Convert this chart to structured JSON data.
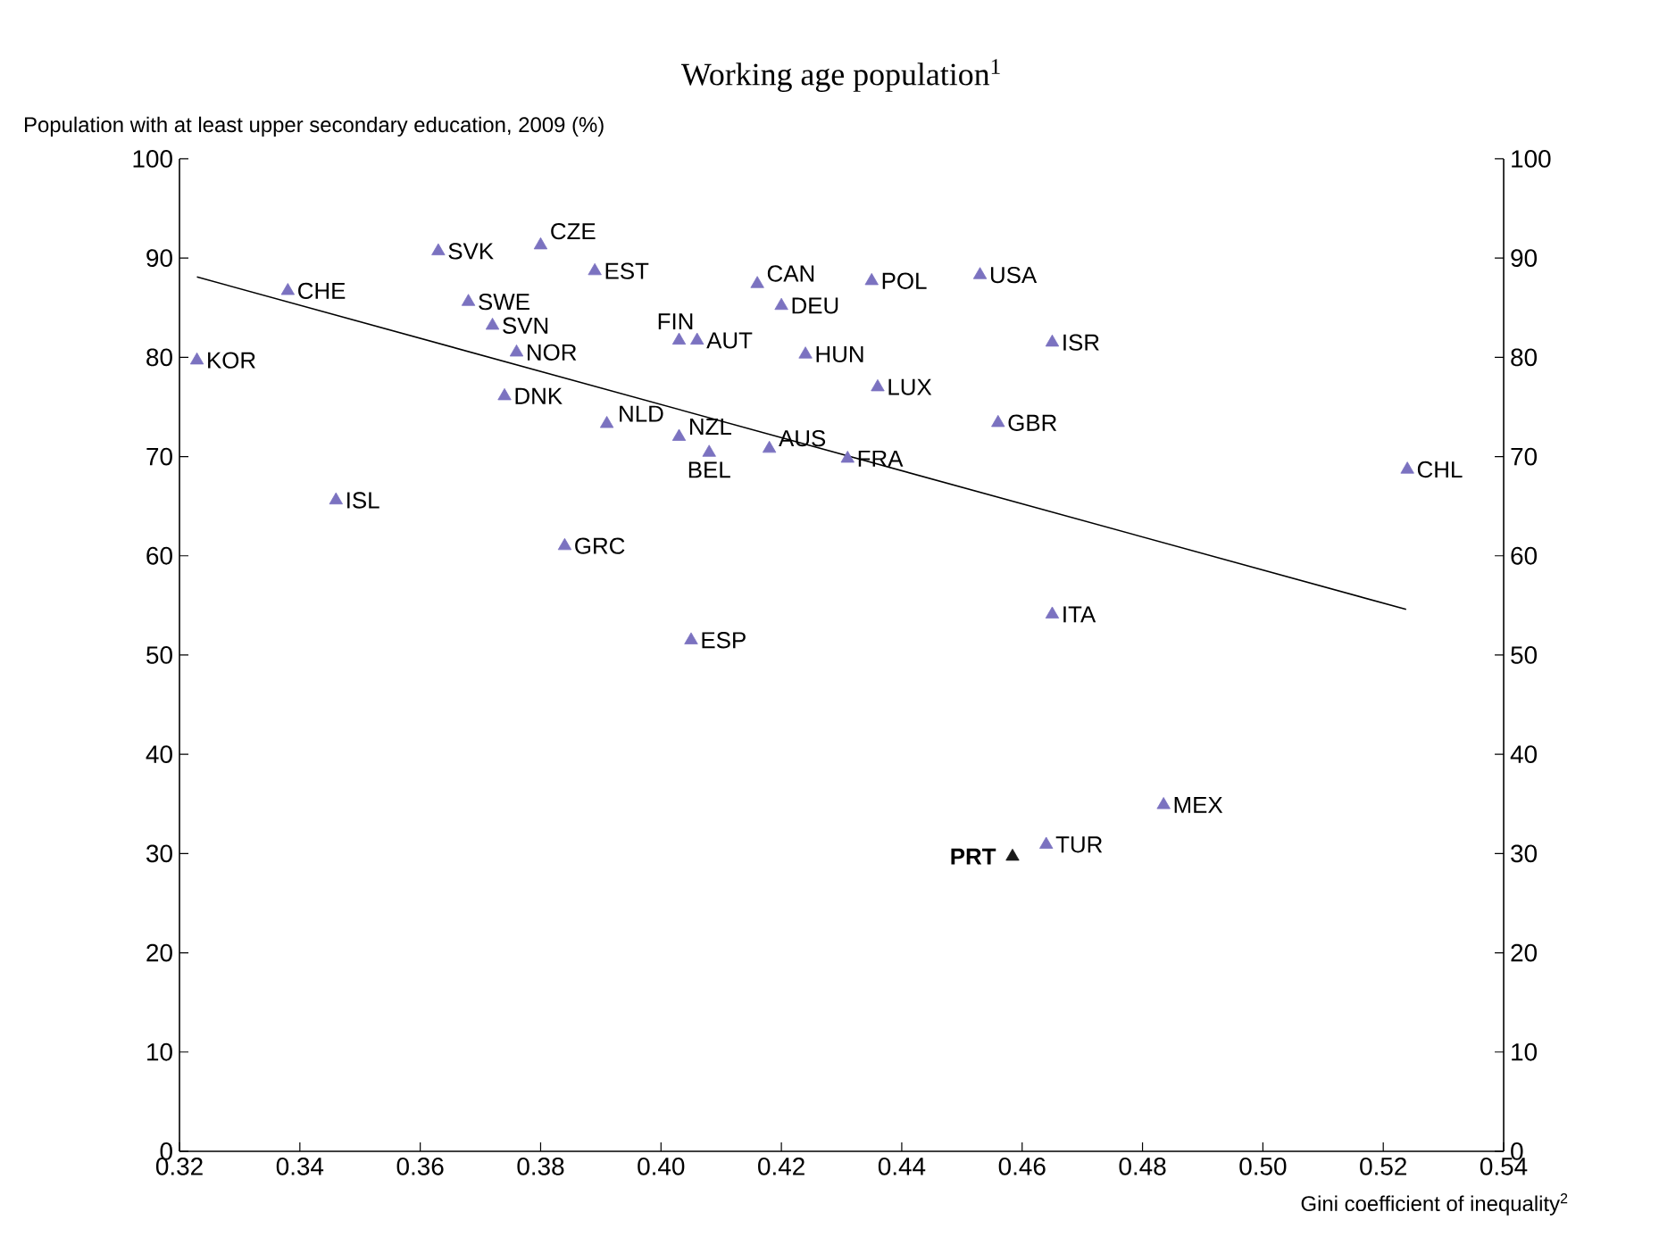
{
  "chart_data": {
    "type": "scatter",
    "title": "Working age population$^{1}$",
    "ylabel": "Population with at least upper secondary education, 2009 (%)",
    "xlabel": "Gini coefficient of inequality$^{2}$",
    "xlim": [
      0.32,
      0.54
    ],
    "xticks": [
      0.32,
      0.34,
      0.36,
      0.38,
      {
        "value": 0.4,
        "label": "0.40"
      },
      0.42,
      0.44,
      0.46,
      0.48,
      {
        "value": 0.5,
        "label": "0.50"
      },
      0.52,
      0.54
    ],
    "ylim": [
      0,
      100
    ],
    "yticks": [
      0,
      10,
      20,
      30,
      40,
      50,
      60,
      70,
      80,
      90,
      100
    ],
    "y2lim": [
      0,
      100
    ],
    "y2ticks": [
      0,
      10,
      20,
      30,
      40,
      50,
      60,
      70,
      80,
      90,
      100
    ],
    "marker": "triangle",
    "series": [
      {
        "color": "#7b72c0",
        "x": [
          0.3229,
          0.338,
          0.363,
          0.38,
          0.389,
          0.368,
          0.372,
          0.376,
          0.374,
          0.391,
          0.403,
          0.408,
          0.346,
          0.384,
          0.403,
          0.406,
          0.416,
          0.42,
          0.435,
          0.453,
          0.465,
          0.424,
          0.436,
          0.456,
          0.418,
          0.431,
          0.465,
          0.405,
          0.4835,
          0.464,
          0.524
        ],
        "values": [
          79.7,
          86.7,
          90.7,
          91.3,
          88.7,
          85.6,
          83.2,
          80.5,
          76.1,
          73.3,
          72.0,
          70.4,
          65.6,
          61.0,
          81.7,
          81.7,
          87.4,
          85.2,
          87.7,
          88.3,
          81.5,
          80.3,
          77.0,
          73.4,
          70.8,
          69.8,
          54.1,
          51.5,
          34.9,
          30.9,
          68.7
        ]
      },
      {
        "color": "#1a1a1a",
        "x": [
          0.4584
        ],
        "values": [
          29.7
        ]
      },
      {
        "type": "line",
        "marker": "none",
        "color": "#000000",
        "x": [
          0.3229,
          0.5238
        ],
        "values": [
          88.1,
          54.6
        ]
      }
    ],
    "annotations": [
      {
        "text": "KOR",
        "x": 0.3229,
        "y": 79.7
      },
      {
        "text": "CHE",
        "x": 0.338,
        "y": 86.7
      },
      {
        "text": "SVK",
        "x": 0.363,
        "y": 90.7
      },
      {
        "text": "CZE",
        "x": 0.38,
        "y": 91.3
      },
      {
        "text": "EST",
        "x": 0.389,
        "y": 88.7
      },
      {
        "text": "SWE",
        "x": 0.368,
        "y": 85.6
      },
      {
        "text": "SVN",
        "x": 0.372,
        "y": 83.2
      },
      {
        "text": "NOR",
        "x": 0.376,
        "y": 80.5
      },
      {
        "text": "DNK",
        "x": 0.374,
        "y": 76.1
      },
      {
        "text": "NLD",
        "x": 0.391,
        "y": 73.3
      },
      {
        "text": "NZL",
        "x": 0.403,
        "y": 72.0
      },
      {
        "text": "BEL",
        "x": 0.408,
        "y": 70.4
      },
      {
        "text": "ISL",
        "x": 0.346,
        "y": 65.6
      },
      {
        "text": "GRC",
        "x": 0.384,
        "y": 61.0
      },
      {
        "text": "FIN",
        "x": 0.403,
        "y": 81.7
      },
      {
        "text": "AUT",
        "x": 0.406,
        "y": 81.7
      },
      {
        "text": "CAN",
        "x": 0.416,
        "y": 87.4
      },
      {
        "text": "DEU",
        "x": 0.42,
        "y": 85.2
      },
      {
        "text": "POL",
        "x": 0.435,
        "y": 87.7
      },
      {
        "text": "USA",
        "x": 0.453,
        "y": 88.3
      },
      {
        "text": "ISR",
        "x": 0.465,
        "y": 81.5
      },
      {
        "text": "HUN",
        "x": 0.424,
        "y": 80.3
      },
      {
        "text": "LUX",
        "x": 0.436,
        "y": 77.0
      },
      {
        "text": "GBR",
        "x": 0.456,
        "y": 73.4
      },
      {
        "text": "AUS",
        "x": 0.418,
        "y": 70.8
      },
      {
        "text": "FRA",
        "x": 0.431,
        "y": 69.8
      },
      {
        "text": "ITA",
        "x": 0.465,
        "y": 54.1
      },
      {
        "text": "ESP",
        "x": 0.405,
        "y": 51.5
      },
      {
        "text": "MEX",
        "x": 0.4835,
        "y": 34.9
      },
      {
        "text": "TUR",
        "x": 0.464,
        "y": 30.9
      },
      {
        "text": "CHL",
        "x": 0.524,
        "y": 68.7
      },
      {
        "text": "**PRT**",
        "x": 0.4584,
        "y": 29.7
      }
    ]
  }
}
